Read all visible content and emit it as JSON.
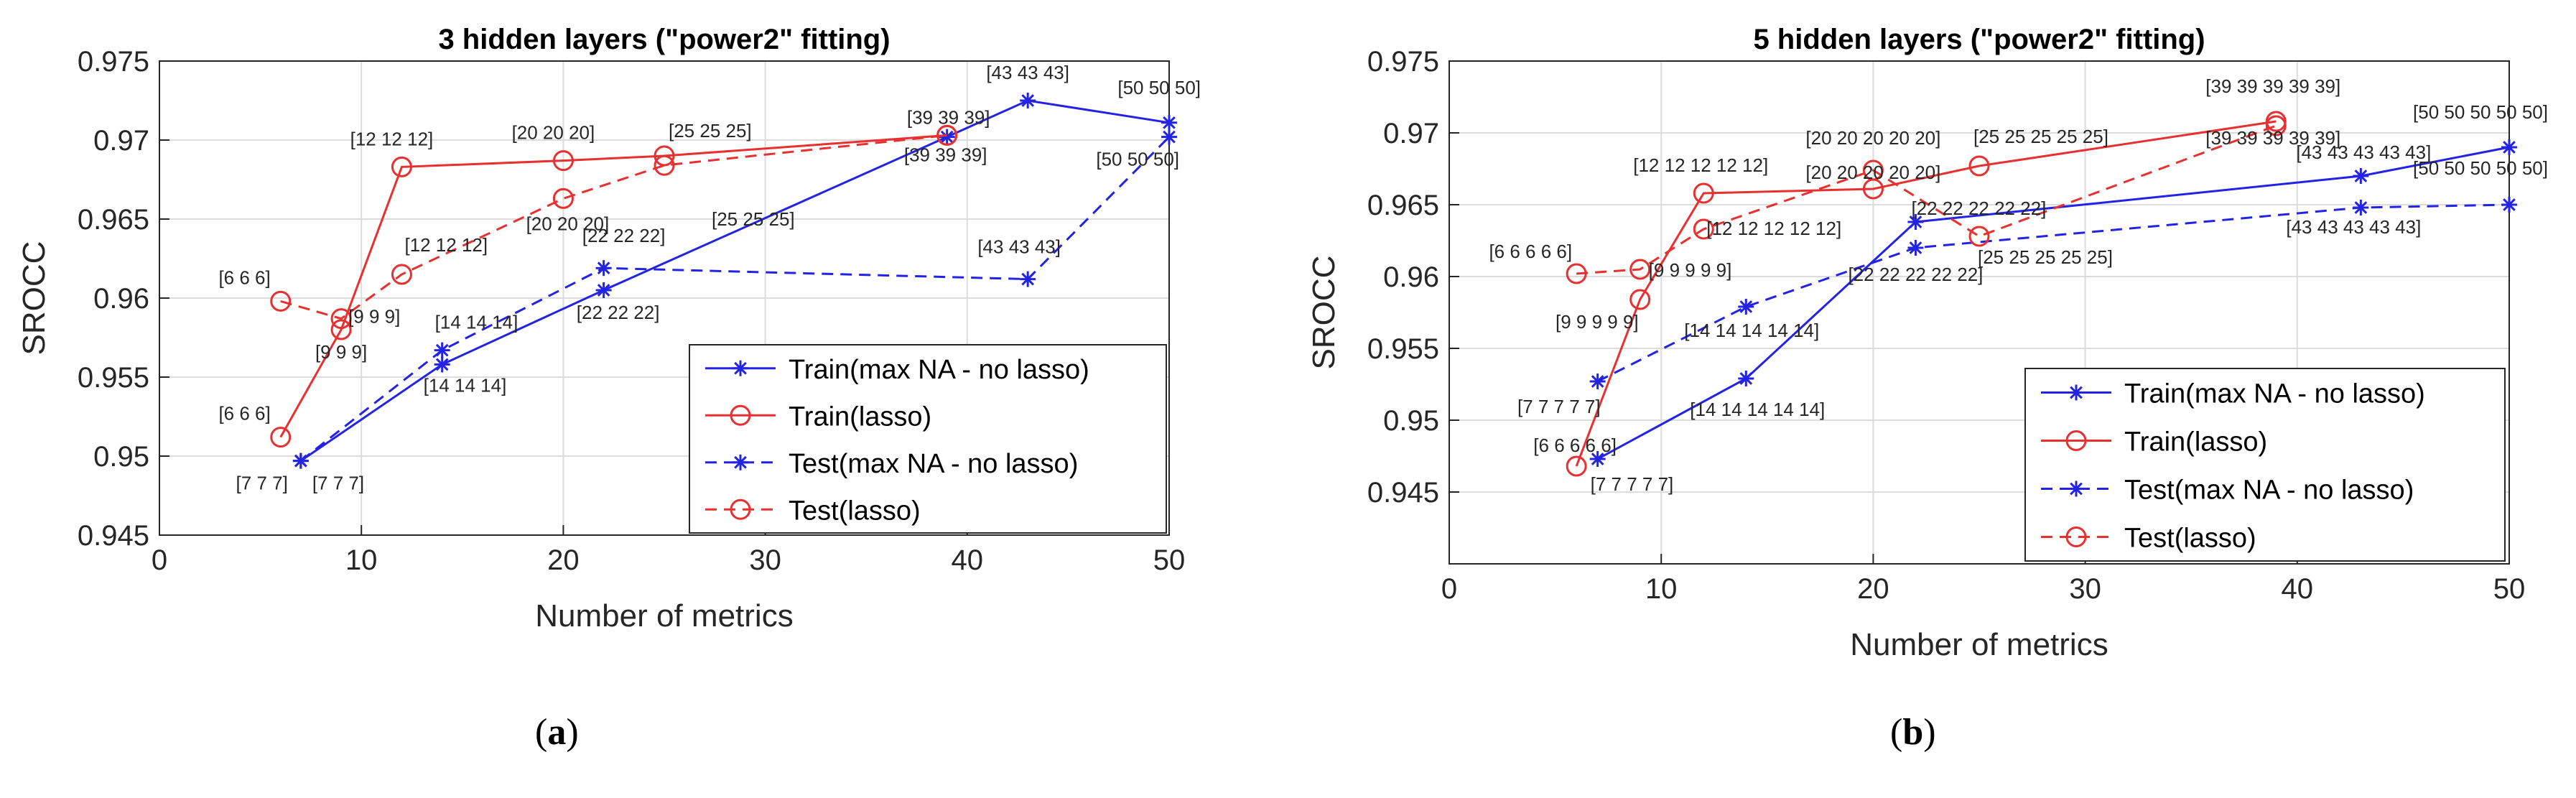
{
  "chart_data": [
    {
      "type": "line",
      "title": "3 hidden layers (\"power2\" fitting)",
      "xlabel": "Number of metrics",
      "ylabel": "SROCC",
      "xlim": [
        0,
        50
      ],
      "ylim": [
        0.945,
        0.975
      ],
      "xticks": [
        0,
        10,
        20,
        30,
        40,
        50
      ],
      "yticks": [
        0.945,
        0.95,
        0.955,
        0.96,
        0.965,
        0.97,
        0.975
      ],
      "xtick_labels": [
        "0",
        "10",
        "20",
        "30",
        "40",
        "50"
      ],
      "ytick_labels": [
        "0.945",
        "0.95",
        "0.955",
        "0.96",
        "0.965",
        "0.97",
        "0.975"
      ],
      "grid": true,
      "legend_position": "bottom-right",
      "subcaption": "a",
      "series": [
        {
          "name": "Train(max NA - no lasso)",
          "color": "#2323e6",
          "dash": "solid",
          "marker": "star",
          "x": [
            7,
            14,
            22,
            39,
            43,
            50
          ],
          "y": [
            0.9497,
            0.9558,
            0.9605,
            0.9702,
            0.9725,
            0.9711
          ]
        },
        {
          "name": "Train(lasso)",
          "color": "#e83030",
          "dash": "solid",
          "marker": "circle",
          "x": [
            6,
            9,
            12,
            20,
            25,
            39
          ],
          "y": [
            0.9512,
            0.958,
            0.9683,
            0.9687,
            0.969,
            0.9703
          ]
        },
        {
          "name": "Test(max NA - no lasso)",
          "color": "#2323e6",
          "dash": "dashed",
          "marker": "star",
          "x": [
            7,
            14,
            22,
            43,
            50
          ],
          "y": [
            0.9497,
            0.9567,
            0.9619,
            0.9612,
            0.9702
          ]
        },
        {
          "name": "Test(lasso)",
          "color": "#e83030",
          "dash": "dashed",
          "marker": "circle",
          "x": [
            6,
            9,
            12,
            20,
            25,
            39
          ],
          "y": [
            0.9598,
            0.9587,
            0.9615,
            0.9663,
            0.9684,
            0.9703
          ]
        }
      ],
      "annotations": [
        {
          "text": "[6 6 6]",
          "x": 6,
          "y": 0.9512,
          "anchor": "end",
          "dx": -14,
          "dy": -24
        },
        {
          "text": "[6 6 6]",
          "x": 6,
          "y": 0.9598,
          "anchor": "end",
          "dx": -14,
          "dy": -24
        },
        {
          "text": "[7 7 7]",
          "x": 7,
          "y": 0.9497,
          "anchor": "end",
          "dx": -18,
          "dy": 40
        },
        {
          "text": "[7 7 7]",
          "x": 7,
          "y": 0.9497,
          "anchor": "start",
          "dx": 16,
          "dy": 40
        },
        {
          "text": "[9 9 9]",
          "x": 9,
          "y": 0.958,
          "anchor": "middle",
          "dx": 0,
          "dy": 40
        },
        {
          "text": "[9 9 9]",
          "x": 9,
          "y": 0.9587,
          "anchor": "start",
          "dx": 10,
          "dy": 6
        },
        {
          "text": "[12 12 12]",
          "x": 12,
          "y": 0.9683,
          "anchor": "middle",
          "dx": -14,
          "dy": -30
        },
        {
          "text": "[12 12 12]",
          "x": 12,
          "y": 0.9615,
          "anchor": "start",
          "dx": 4,
          "dy": -32
        },
        {
          "text": "[14 14 14]",
          "x": 14,
          "y": 0.9567,
          "anchor": "start",
          "dx": -10,
          "dy": -30
        },
        {
          "text": "[14 14 14]",
          "x": 14,
          "y": 0.9558,
          "anchor": "start",
          "dx": -26,
          "dy": 38
        },
        {
          "text": "[20 20 20]",
          "x": 20,
          "y": 0.9687,
          "anchor": "middle",
          "dx": -14,
          "dy": -30
        },
        {
          "text": "[20 20 20]",
          "x": 20,
          "y": 0.9663,
          "anchor": "middle",
          "dx": 6,
          "dy": 44
        },
        {
          "text": "[22 22 22]",
          "x": 22,
          "y": 0.9619,
          "anchor": "middle",
          "dx": 28,
          "dy": -36
        },
        {
          "text": "[22 22 22]",
          "x": 22,
          "y": 0.9605,
          "anchor": "middle",
          "dx": 20,
          "dy": 40
        },
        {
          "text": "[25 25 25]",
          "x": 25,
          "y": 0.969,
          "anchor": "start",
          "dx": 6,
          "dy": -26
        },
        {
          "text": "[25 25 25]",
          "x": 25,
          "y": 0.9684,
          "anchor": "start",
          "dx": 66,
          "dy": 84
        },
        {
          "text": "[39 39 39]",
          "x": 39,
          "y": 0.9703,
          "anchor": "middle",
          "dx": 2,
          "dy": -16
        },
        {
          "text": "[39 39 39]",
          "x": 39,
          "y": 0.9703,
          "anchor": "middle",
          "dx": -2,
          "dy": 36
        },
        {
          "text": "[43 43 43]",
          "x": 43,
          "y": 0.9725,
          "anchor": "middle",
          "dx": 0,
          "dy": -30
        },
        {
          "text": "[43 43 43]",
          "x": 43,
          "y": 0.9612,
          "anchor": "middle",
          "dx": -12,
          "dy": -36
        },
        {
          "text": "[50 50 50]",
          "x": 50,
          "y": 0.9711,
          "anchor": "end",
          "dx": 44,
          "dy": -40
        },
        {
          "text": "[50 50 50]",
          "x": 50,
          "y": 0.9702,
          "anchor": "end",
          "dx": 14,
          "dy": 40
        }
      ]
    },
    {
      "type": "line",
      "title": "5 hidden layers (\"power2\" fitting)",
      "xlabel": "Number of metrics",
      "ylabel": "SROCC",
      "xlim": [
        0,
        50
      ],
      "ylim": [
        0.94,
        0.975
      ],
      "xticks": [
        0,
        10,
        20,
        30,
        40,
        50
      ],
      "yticks": [
        0.945,
        0.95,
        0.955,
        0.96,
        0.965,
        0.97,
        0.975
      ],
      "xtick_labels": [
        "0",
        "10",
        "20",
        "30",
        "40",
        "50"
      ],
      "ytick_labels": [
        "0.945",
        "0.95",
        "0.955",
        "0.96",
        "0.965",
        "0.97",
        "0.975"
      ],
      "grid": true,
      "legend_position": "bottom-right",
      "subcaption": "b",
      "series": [
        {
          "name": "Train(max NA - no lasso)",
          "color": "#2323e6",
          "dash": "solid",
          "marker": "star",
          "x": [
            7,
            14,
            22,
            43,
            50
          ],
          "y": [
            0.9473,
            0.9529,
            0.9638,
            0.967,
            0.969
          ]
        },
        {
          "name": "Train(lasso)",
          "color": "#e83030",
          "dash": "solid",
          "marker": "circle",
          "x": [
            6,
            9,
            12,
            20,
            25,
            39
          ],
          "y": [
            0.9468,
            0.9584,
            0.9658,
            0.9661,
            0.9677,
            0.9708
          ]
        },
        {
          "name": "Test(max NA - no lasso)",
          "color": "#2323e6",
          "dash": "dashed",
          "marker": "star",
          "x": [
            7,
            14,
            22,
            43,
            50
          ],
          "y": [
            0.9527,
            0.9579,
            0.962,
            0.9648,
            0.965
          ]
        },
        {
          "name": "Test(lasso)",
          "color": "#e83030",
          "dash": "dashed",
          "marker": "circle",
          "x": [
            6,
            9,
            12,
            20,
            25,
            39
          ],
          "y": [
            0.9602,
            0.9605,
            0.9633,
            0.9674,
            0.9628,
            0.9705
          ]
        }
      ],
      "annotations": [
        {
          "text": "[6 6 6 6 6]",
          "x": 6,
          "y": 0.9602,
          "anchor": "end",
          "dx": -6,
          "dy": -22
        },
        {
          "text": "[6 6 6 6 6]",
          "x": 6,
          "y": 0.9468,
          "anchor": "middle",
          "dx": -2,
          "dy": -20
        },
        {
          "text": "[7 7 7 7 7]",
          "x": 7,
          "y": 0.9527,
          "anchor": "end",
          "dx": 4,
          "dy": 44
        },
        {
          "text": "[7 7 7 7 7]",
          "x": 7,
          "y": 0.9473,
          "anchor": "start",
          "dx": -10,
          "dy": 44
        },
        {
          "text": "[9 9 9 9 9]",
          "x": 9,
          "y": 0.9584,
          "anchor": "end",
          "dx": -2,
          "dy": 40
        },
        {
          "text": "[9 9 9 9 9]",
          "x": 9,
          "y": 0.9605,
          "anchor": "start",
          "dx": 12,
          "dy": 10
        },
        {
          "text": "[12 12 12 12 12]",
          "x": 12,
          "y": 0.9658,
          "anchor": "middle",
          "dx": -4,
          "dy": -30
        },
        {
          "text": "[12 12 12 12 12]",
          "x": 12,
          "y": 0.9633,
          "anchor": "start",
          "dx": 4,
          "dy": 8
        },
        {
          "text": "[14 14 14 14 14]",
          "x": 14,
          "y": 0.9579,
          "anchor": "middle",
          "dx": 8,
          "dy": 42
        },
        {
          "text": "[14 14 14 14 14]",
          "x": 14,
          "y": 0.9529,
          "anchor": "middle",
          "dx": 16,
          "dy": 52
        },
        {
          "text": "[20 20 20 20 20]",
          "x": 20,
          "y": 0.9674,
          "anchor": "middle",
          "dx": 0,
          "dy": -36
        },
        {
          "text": "[20 20 20 20 20]",
          "x": 20,
          "y": 0.9661,
          "anchor": "middle",
          "dx": 0,
          "dy": -14
        },
        {
          "text": "[22 22 22 22 22]",
          "x": 22,
          "y": 0.9638,
          "anchor": "start",
          "dx": -6,
          "dy": -10
        },
        {
          "text": "[22 22 22 22 22]",
          "x": 22,
          "y": 0.962,
          "anchor": "middle",
          "dx": 0,
          "dy": 46
        },
        {
          "text": "[25 25 25 25 25]",
          "x": 25,
          "y": 0.9677,
          "anchor": "start",
          "dx": -8,
          "dy": -32
        },
        {
          "text": "[25 25 25 25 25]",
          "x": 25,
          "y": 0.9628,
          "anchor": "start",
          "dx": -2,
          "dy": 38
        },
        {
          "text": "[39 39 39 39 39]",
          "x": 39,
          "y": 0.9708,
          "anchor": "middle",
          "dx": -4,
          "dy": -40
        },
        {
          "text": "[39 39 39 39 39]",
          "x": 39,
          "y": 0.9705,
          "anchor": "middle",
          "dx": -4,
          "dy": 26
        },
        {
          "text": "[43 43 43 43 43]",
          "x": 43,
          "y": 0.967,
          "anchor": "middle",
          "dx": 4,
          "dy": -24
        },
        {
          "text": "[43 43 43 43 43]",
          "x": 43,
          "y": 0.9648,
          "anchor": "middle",
          "dx": -10,
          "dy": 36
        },
        {
          "text": "[50 50 50 50 50]",
          "x": 50,
          "y": 0.969,
          "anchor": "end",
          "dx": 54,
          "dy": -40
        },
        {
          "text": "[50 50 50 50 50]",
          "x": 50,
          "y": 0.965,
          "anchor": "end",
          "dx": 54,
          "dy": -42
        }
      ]
    }
  ],
  "captions": {
    "a": "a",
    "b": "b",
    "open_paren": "(",
    "close_paren": ")"
  }
}
